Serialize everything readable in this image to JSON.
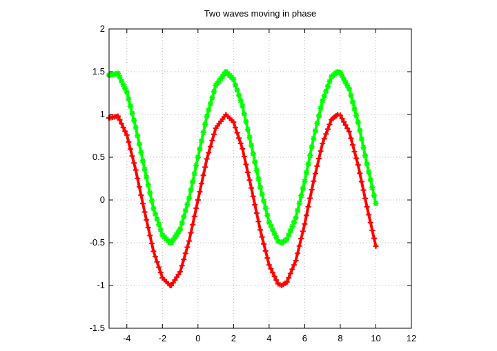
{
  "chart_data": {
    "type": "scatter",
    "title": "Two waves moving in phase",
    "xlabel": "",
    "ylabel": "",
    "xlim": [
      -5,
      12
    ],
    "ylim": [
      -1.5,
      2
    ],
    "x_ticks": [
      "-4",
      "-2",
      "0",
      "2",
      "4",
      "6",
      "8",
      "10",
      "12"
    ],
    "y_ticks": [
      "-1.5",
      "-1",
      "-0.5",
      "0",
      "0.5",
      "1",
      "1.5",
      "2"
    ],
    "grid": true,
    "legend": "none",
    "x_range_plotted": [
      -5,
      10
    ],
    "series": [
      {
        "color": "#ff0000",
        "marker": "plus",
        "points": [
          [
            -5.0,
            0.96
          ],
          [
            -4.5,
            0.98
          ],
          [
            -4.0,
            0.76
          ],
          [
            -3.5,
            0.35
          ],
          [
            -3.0,
            -0.14
          ],
          [
            -2.5,
            -0.6
          ],
          [
            -2.0,
            -0.91
          ],
          [
            -1.571,
            -1.0
          ],
          [
            -1.5,
            -1.0
          ],
          [
            -1.0,
            -0.84
          ],
          [
            -0.5,
            -0.48
          ],
          [
            0.0,
            0.0
          ],
          [
            0.5,
            0.48
          ],
          [
            1.0,
            0.84
          ],
          [
            1.571,
            1.0
          ],
          [
            2.0,
            0.91
          ],
          [
            2.5,
            0.6
          ],
          [
            3.0,
            0.14
          ],
          [
            3.5,
            -0.35
          ],
          [
            4.0,
            -0.76
          ],
          [
            4.5,
            -0.98
          ],
          [
            4.712,
            -1.0
          ],
          [
            5.0,
            -0.96
          ],
          [
            5.5,
            -0.71
          ],
          [
            6.0,
            -0.28
          ],
          [
            6.5,
            0.22
          ],
          [
            7.0,
            0.66
          ],
          [
            7.5,
            0.94
          ],
          [
            7.854,
            1.0
          ],
          [
            8.0,
            0.99
          ],
          [
            8.5,
            0.8
          ],
          [
            9.0,
            0.41
          ],
          [
            9.5,
            -0.08
          ],
          [
            10.0,
            -0.54
          ]
        ]
      },
      {
        "color": "#00ff00",
        "marker": "star",
        "points": [
          [
            -5.0,
            1.46
          ],
          [
            -4.5,
            1.48
          ],
          [
            -4.0,
            1.26
          ],
          [
            -3.5,
            0.85
          ],
          [
            -3.0,
            0.36
          ],
          [
            -2.5,
            -0.1
          ],
          [
            -2.0,
            -0.41
          ],
          [
            -1.571,
            -0.5
          ],
          [
            -1.5,
            -0.5
          ],
          [
            -1.0,
            -0.34
          ],
          [
            -0.5,
            0.02
          ],
          [
            0.0,
            0.5
          ],
          [
            0.5,
            0.98
          ],
          [
            1.0,
            1.34
          ],
          [
            1.571,
            1.5
          ],
          [
            2.0,
            1.41
          ],
          [
            2.5,
            1.1
          ],
          [
            3.0,
            0.64
          ],
          [
            3.5,
            0.15
          ],
          [
            4.0,
            -0.26
          ],
          [
            4.5,
            -0.48
          ],
          [
            4.712,
            -0.5
          ],
          [
            5.0,
            -0.46
          ],
          [
            5.5,
            -0.21
          ],
          [
            6.0,
            0.22
          ],
          [
            6.5,
            0.72
          ],
          [
            7.0,
            1.16
          ],
          [
            7.5,
            1.44
          ],
          [
            7.854,
            1.5
          ],
          [
            8.0,
            1.49
          ],
          [
            8.5,
            1.3
          ],
          [
            9.0,
            0.91
          ],
          [
            9.5,
            0.42
          ],
          [
            10.0,
            -0.04
          ]
        ]
      }
    ]
  }
}
